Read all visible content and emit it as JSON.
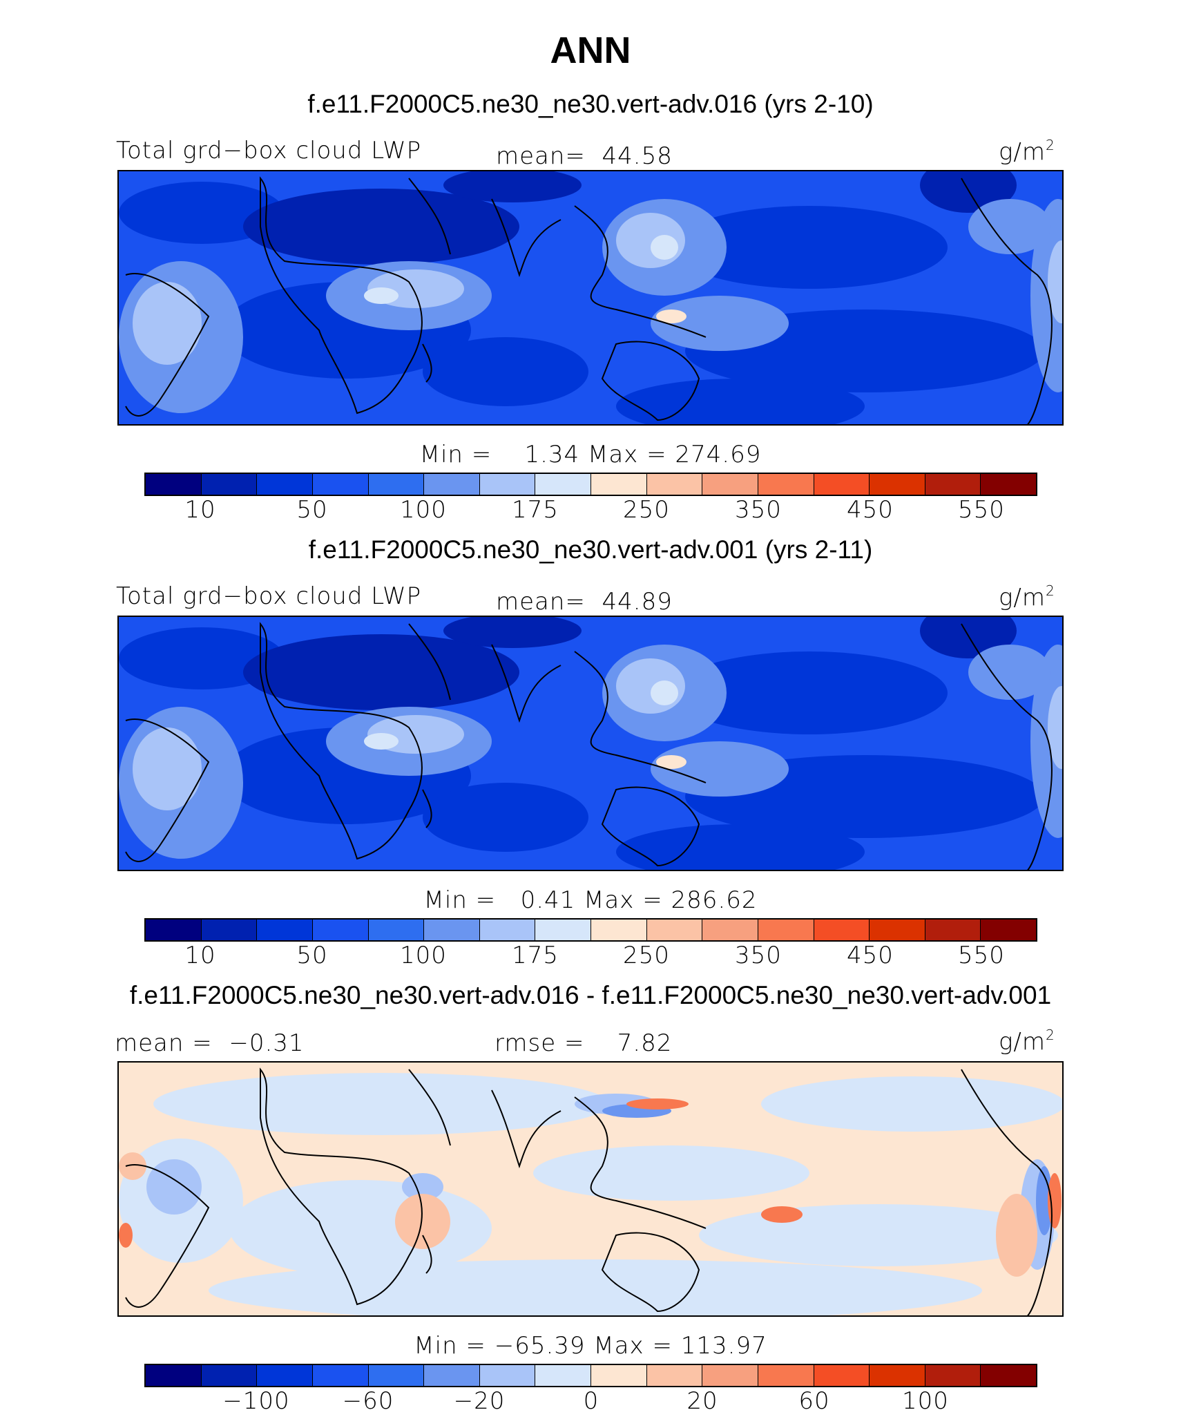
{
  "title": "ANN",
  "colorbar_abs": {
    "colors": [
      "#00007f",
      "#0021b0",
      "#0036d8",
      "#1a52f0",
      "#2e6ef0",
      "#6a95f0",
      "#a9c4f8",
      "#d6e6fa",
      "#fde6d2",
      "#fbc3a6",
      "#f7a07f",
      "#f8784f",
      "#f44e25",
      "#db3200",
      "#b11e0c",
      "#830000"
    ],
    "tick_labels": [
      "10",
      "50",
      "100",
      "175",
      "250",
      "350",
      "450",
      "550"
    ]
  },
  "colorbar_diff": {
    "colors": [
      "#00007f",
      "#0021b0",
      "#0036d8",
      "#1a52f0",
      "#2e6ef0",
      "#6a95f0",
      "#a9c4f8",
      "#d6e6fa",
      "#fde6d2",
      "#fbc3a6",
      "#f7a07f",
      "#f8784f",
      "#f44e25",
      "#db3200",
      "#b11e0c",
      "#830000"
    ],
    "tick_labels": [
      "−100",
      "−60",
      "−20",
      "0",
      "20",
      "60",
      "100"
    ]
  },
  "panels": [
    {
      "case_title": "f.e11.F2000C5.ne30_ne30.vert-adv.016 (yrs 2-10)",
      "left_label": "Total grd−box cloud LWP",
      "center_label": "mean=  44.58",
      "units": "g/m",
      "units_sup": "2",
      "minmax": "Min =    1.34 Max = 274.69"
    },
    {
      "case_title": "f.e11.F2000C5.ne30_ne30.vert-adv.001 (yrs 2-11)",
      "left_label": "Total grd−box cloud LWP",
      "center_label": "mean=  44.89",
      "units": "g/m",
      "units_sup": "2",
      "minmax": "Min =   0.41 Max = 286.62"
    },
    {
      "case_title": "f.e11.F2000C5.ne30_ne30.vert-adv.016 - f.e11.F2000C5.ne30_ne30.vert-adv.001",
      "left_label": "mean =  −0.31",
      "center_label": "rmse =    7.82",
      "units": "g/m",
      "units_sup": "2",
      "minmax": "Min = −65.39 Max = 113.97"
    }
  ]
}
